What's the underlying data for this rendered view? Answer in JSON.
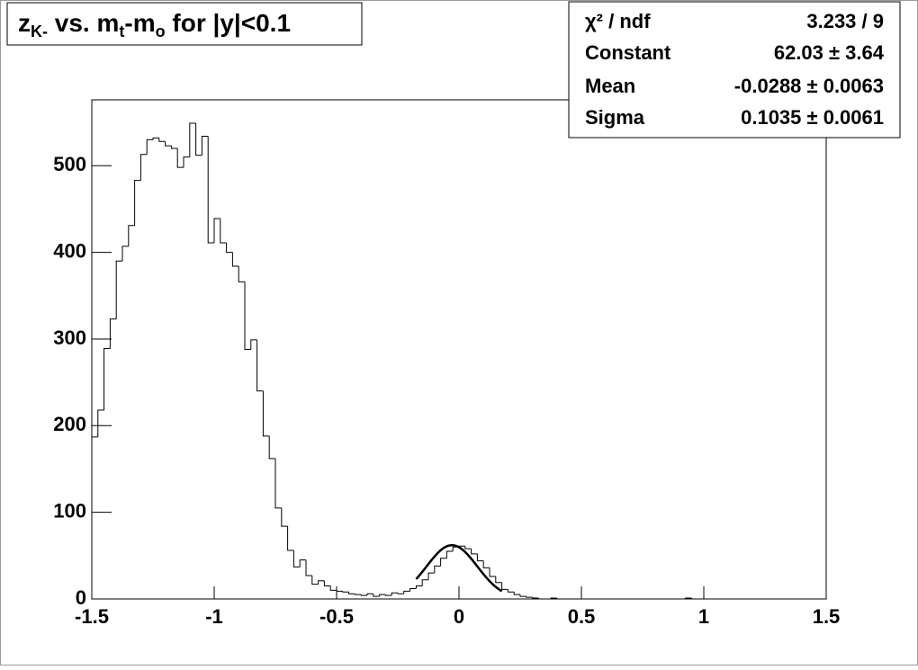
{
  "chart_data": {
    "type": "histogram",
    "title": [
      {
        "text": "z"
      },
      {
        "text": "K-",
        "sub": true
      },
      {
        "text": " vs. m"
      },
      {
        "text": "t",
        "sub": true
      },
      {
        "text": "-m"
      },
      {
        "text": "o",
        "sub": true
      },
      {
        "text": " for |y|<0.1"
      }
    ],
    "bins": [
      -1.5,
      -1.475,
      -1.45,
      -1.425,
      -1.4,
      -1.375,
      -1.35,
      -1.325,
      -1.3,
      -1.275,
      -1.25,
      -1.225,
      -1.2,
      -1.175,
      -1.15,
      -1.125,
      -1.1,
      -1.075,
      -1.05,
      -1.025,
      -1,
      -0.975,
      -0.95,
      -0.925,
      -0.9,
      -0.875,
      -0.85,
      -0.825,
      -0.8,
      -0.775,
      -0.75,
      -0.725,
      -0.7,
      -0.675,
      -0.65,
      -0.625,
      -0.6,
      -0.575,
      -0.55,
      -0.525,
      -0.5,
      -0.475,
      -0.45,
      -0.425,
      -0.4,
      -0.375,
      -0.35,
      -0.325,
      -0.3,
      -0.275,
      -0.25,
      -0.225,
      -0.2,
      -0.175,
      -0.15,
      -0.125,
      -0.1,
      -0.075,
      -0.05,
      -0.025,
      0,
      0.025,
      0.05,
      0.075,
      0.1,
      0.125,
      0.15,
      0.175,
      0.2,
      0.225,
      0.25,
      0.275,
      0.3,
      0.325,
      0.35,
      0.375,
      0.4,
      0.425,
      0.45,
      0.475,
      0.5,
      0.525,
      0.55,
      0.575,
      0.6,
      0.625,
      0.65,
      0.675,
      0.7,
      0.725,
      0.75,
      0.775,
      0.8,
      0.825,
      0.85,
      0.875,
      0.9,
      0.925,
      0.95,
      0.975,
      1,
      1.025,
      1.05,
      1.075,
      1.1,
      1.125,
      1.15,
      1.175,
      1.2,
      1.225,
      1.25,
      1.275,
      1.3,
      1.325,
      1.35,
      1.375,
      1.4,
      1.425,
      1.45,
      1.475,
      1.5
    ],
    "values": [
      187,
      218,
      289,
      323,
      390,
      407,
      431,
      483,
      513,
      530,
      532,
      528,
      523,
      520,
      498,
      510,
      549,
      512,
      534,
      411,
      439,
      411,
      400,
      384,
      366,
      288,
      299,
      240,
      188,
      162,
      105,
      84,
      56,
      37,
      45,
      27,
      17,
      21,
      15,
      10,
      9,
      8,
      6,
      5,
      4,
      6,
      3,
      5,
      4,
      7,
      6,
      9,
      12,
      15,
      22,
      30,
      38,
      47,
      55,
      60,
      61,
      58,
      52,
      44,
      36,
      26,
      19,
      11,
      8,
      5,
      3,
      2,
      1,
      0,
      0,
      1,
      0,
      0,
      0,
      0,
      0,
      0,
      0,
      0,
      0,
      0,
      0,
      0,
      0,
      0,
      0,
      0,
      0,
      0,
      0,
      0,
      0,
      1,
      0,
      0,
      0,
      0,
      0,
      0,
      0,
      0,
      0,
      0,
      0,
      0,
      0,
      0,
      0,
      0,
      0,
      0,
      0,
      0,
      0,
      0
    ],
    "color": "#000000",
    "xlim": [
      -1.5,
      1.5
    ],
    "xticks": [
      -1.5,
      -1,
      -0.5,
      0,
      0.5,
      1,
      1.5
    ],
    "ylim": [
      0,
      576
    ],
    "yticks": [
      0,
      100,
      200,
      300,
      400,
      500
    ],
    "fit_range": [
      -0.175,
      0.175
    ],
    "stats": [
      {
        "label": "χ² / ndf",
        "value_label": "3.233 / 9"
      },
      {
        "label": "Constant",
        "value": 62.03,
        "error": 3.64,
        "value_label": "62.03 ± 3.64"
      },
      {
        "label": "Mean",
        "value": -0.0288,
        "error": 0.0063,
        "value_label": "-0.0288 ± 0.0063"
      },
      {
        "label": "Sigma",
        "value": 0.1035,
        "error": 0.0061,
        "value_label": "0.1035 ± 0.0061"
      }
    ]
  }
}
